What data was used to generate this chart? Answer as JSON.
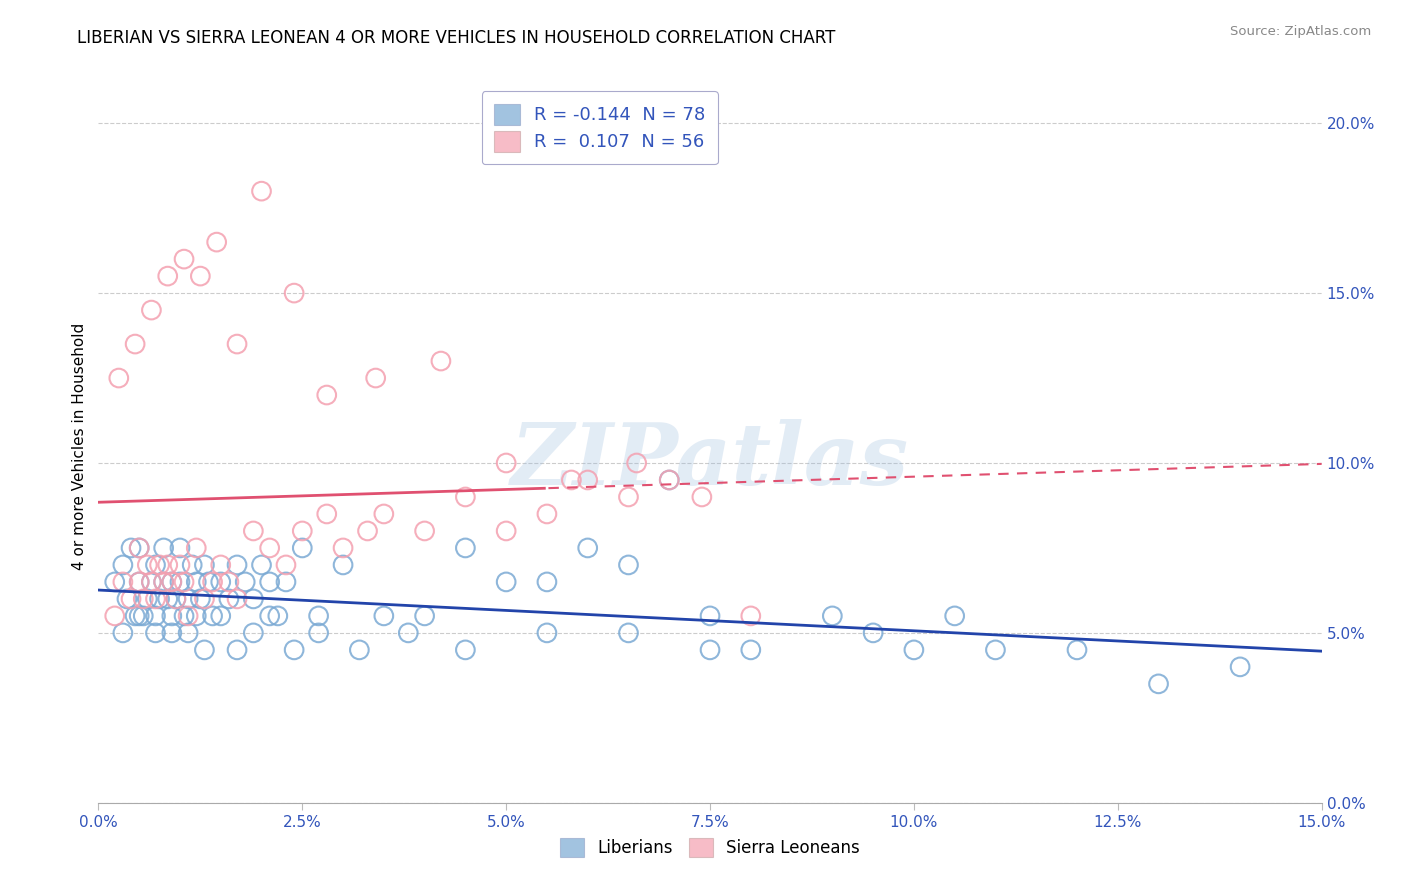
{
  "title": "LIBERIAN VS SIERRA LEONEAN 4 OR MORE VEHICLES IN HOUSEHOLD CORRELATION CHART",
  "source": "Source: ZipAtlas.com",
  "xmin": 0.0,
  "xmax": 15.0,
  "ymin": 0.0,
  "ymax": 21.0,
  "ytick_vals": [
    0.0,
    5.0,
    10.0,
    15.0,
    20.0
  ],
  "xtick_vals": [
    0.0,
    2.5,
    5.0,
    7.5,
    10.0,
    12.5,
    15.0
  ],
  "blue_color": "#7BAAD4",
  "pink_color": "#F4A0B0",
  "blue_line_color": "#2244AA",
  "pink_line_color": "#E05070",
  "legend_blue_R": "-0.144",
  "legend_blue_N": "78",
  "legend_pink_R": "0.107",
  "legend_pink_N": "56",
  "watermark": "ZIPatlas",
  "legend_label_blue": "Liberians",
  "legend_label_pink": "Sierra Leoneans",
  "ylabel": "4 or more Vehicles in Household",
  "blue_x": [
    0.2,
    0.3,
    0.35,
    0.4,
    0.45,
    0.5,
    0.5,
    0.55,
    0.6,
    0.65,
    0.7,
    0.7,
    0.75,
    0.8,
    0.8,
    0.85,
    0.9,
    0.9,
    0.95,
    1.0,
    1.0,
    1.05,
    1.1,
    1.15,
    1.2,
    1.2,
    1.25,
    1.3,
    1.35,
    1.4,
    1.5,
    1.6,
    1.7,
    1.8,
    1.9,
    2.0,
    2.1,
    2.2,
    2.3,
    2.5,
    2.7,
    3.0,
    3.5,
    4.0,
    4.5,
    5.0,
    5.5,
    6.0,
    6.5,
    7.0,
    7.5,
    8.0,
    9.0,
    9.5,
    10.0,
    10.5,
    11.0,
    12.0,
    13.0,
    14.0,
    0.3,
    0.5,
    0.7,
    0.9,
    1.1,
    1.3,
    1.5,
    1.7,
    1.9,
    2.1,
    2.4,
    2.7,
    3.2,
    3.8,
    4.5,
    5.5,
    6.5,
    7.5
  ],
  "blue_y": [
    6.5,
    7.0,
    6.0,
    7.5,
    5.5,
    6.5,
    7.5,
    5.5,
    6.0,
    6.5,
    5.5,
    7.0,
    6.0,
    6.5,
    7.5,
    6.0,
    6.5,
    5.5,
    6.0,
    6.5,
    7.5,
    5.5,
    6.0,
    7.0,
    5.5,
    6.5,
    6.0,
    7.0,
    6.5,
    5.5,
    6.5,
    6.0,
    7.0,
    6.5,
    6.0,
    7.0,
    6.5,
    5.5,
    6.5,
    7.5,
    5.5,
    7.0,
    5.5,
    5.5,
    7.5,
    6.5,
    6.5,
    7.5,
    7.0,
    9.5,
    5.5,
    4.5,
    5.5,
    5.0,
    4.5,
    5.5,
    4.5,
    4.5,
    3.5,
    4.0,
    5.0,
    5.5,
    5.0,
    5.0,
    5.0,
    4.5,
    5.5,
    4.5,
    5.0,
    5.5,
    4.5,
    5.0,
    4.5,
    5.0,
    4.5,
    5.0,
    5.0,
    4.5
  ],
  "pink_x": [
    0.2,
    0.3,
    0.4,
    0.5,
    0.5,
    0.55,
    0.6,
    0.65,
    0.7,
    0.75,
    0.8,
    0.85,
    0.9,
    0.95,
    1.0,
    1.05,
    1.1,
    1.2,
    1.3,
    1.4,
    1.5,
    1.6,
    1.7,
    1.9,
    2.1,
    2.3,
    2.5,
    2.8,
    3.0,
    3.3,
    3.5,
    4.0,
    4.5,
    5.0,
    5.5,
    6.0,
    6.5,
    7.0,
    0.25,
    0.45,
    0.65,
    0.85,
    1.05,
    1.25,
    1.45,
    1.7,
    2.0,
    2.4,
    2.8,
    3.4,
    4.2,
    5.0,
    5.8,
    6.6,
    7.4,
    8.0
  ],
  "pink_y": [
    5.5,
    6.5,
    6.0,
    6.5,
    7.5,
    6.0,
    7.0,
    6.5,
    6.0,
    7.0,
    6.5,
    7.0,
    6.5,
    6.0,
    7.0,
    6.5,
    5.5,
    7.5,
    6.0,
    6.5,
    7.0,
    6.5,
    6.0,
    8.0,
    7.5,
    7.0,
    8.0,
    8.5,
    7.5,
    8.0,
    8.5,
    8.0,
    9.0,
    8.0,
    8.5,
    9.5,
    9.0,
    9.5,
    12.5,
    13.5,
    14.5,
    15.5,
    16.0,
    15.5,
    16.5,
    13.5,
    18.0,
    15.0,
    12.0,
    12.5,
    13.0,
    10.0,
    9.5,
    10.0,
    9.0,
    5.5
  ]
}
